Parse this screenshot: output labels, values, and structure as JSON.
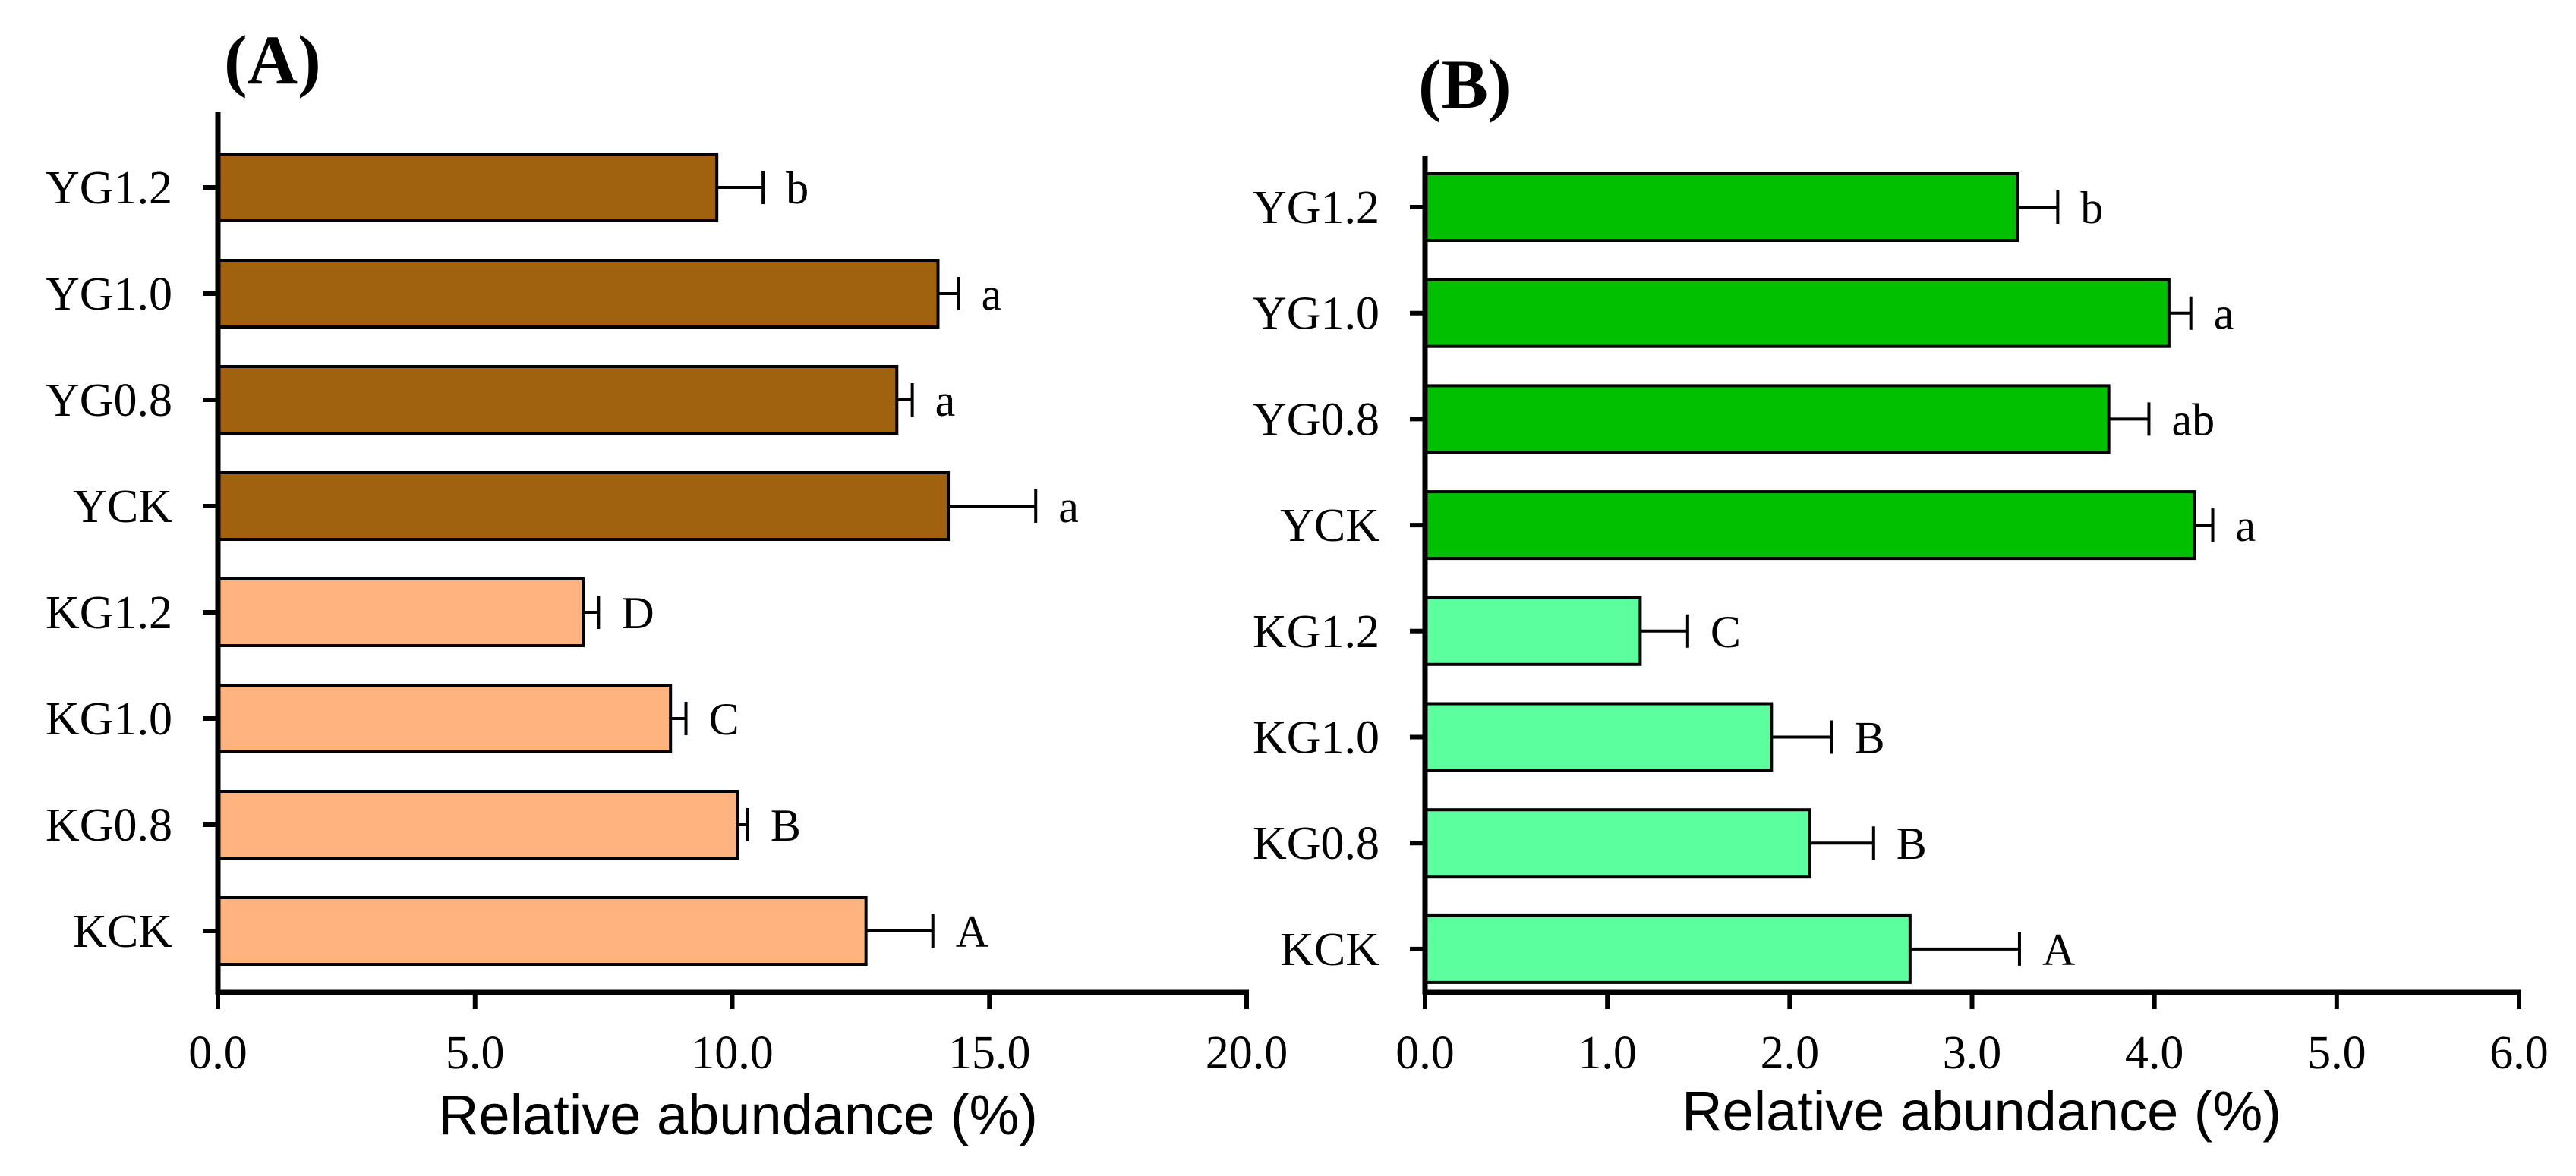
{
  "chart_data": [
    {
      "panel_label": "(A)",
      "type": "bar",
      "orientation": "horizontal",
      "categories": [
        "YG1.2",
        "YG1.0",
        "YG0.8",
        "YCK",
        "KG1.2",
        "KG1.0",
        "KG0.8",
        "KCK"
      ],
      "values": [
        9.7,
        14.0,
        13.2,
        14.2,
        7.1,
        8.8,
        10.1,
        12.6
      ],
      "errors": [
        0.9,
        0.4,
        0.3,
        1.7,
        0.3,
        0.3,
        0.2,
        1.3
      ],
      "significance": [
        "b",
        "a",
        "a",
        "a",
        "D",
        "C",
        "B",
        "A"
      ],
      "colors": [
        "#A0620F",
        "#A0620F",
        "#A0620F",
        "#A0620F",
        "#FFB480",
        "#FFB480",
        "#FFB480",
        "#FFB480"
      ],
      "xlabel": "Relative abundance (%)",
      "xlim": [
        0,
        20
      ],
      "xticks": [
        "0.0",
        "5.0",
        "10.0",
        "15.0",
        "20.0"
      ]
    },
    {
      "panel_label": "(B)",
      "type": "bar",
      "orientation": "horizontal",
      "categories": [
        "YG1.2",
        "YG1.0",
        "YG0.8",
        "YCK",
        "KG1.2",
        "KG1.0",
        "KG0.8",
        "KCK"
      ],
      "values": [
        3.25,
        4.08,
        3.75,
        4.22,
        1.18,
        1.9,
        2.11,
        2.66
      ],
      "errors": [
        0.22,
        0.12,
        0.22,
        0.1,
        0.26,
        0.33,
        0.35,
        0.6
      ],
      "significance": [
        "b",
        "a",
        "ab",
        "a",
        "C",
        "B",
        "B",
        "A"
      ],
      "colors": [
        "#00C000",
        "#00C000",
        "#00C000",
        "#00C000",
        "#5CFF9E",
        "#5CFF9E",
        "#5CFF9E",
        "#5CFF9E"
      ],
      "xlabel": "Relative abundance (%)",
      "xlim": [
        0,
        6
      ],
      "xticks": [
        "0.0",
        "1.0",
        "2.0",
        "3.0",
        "4.0",
        "5.0",
        "6.0"
      ]
    }
  ]
}
